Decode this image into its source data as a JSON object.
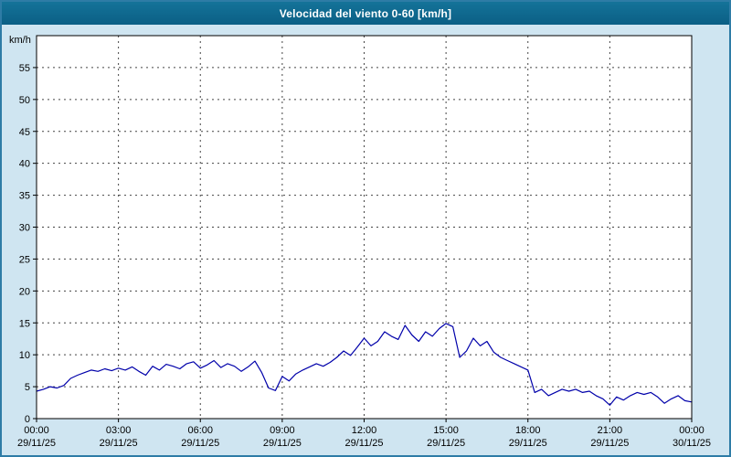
{
  "window": {
    "title": "Velocidad del viento 0-60 [km/h]"
  },
  "chart_data": {
    "type": "line",
    "title": "Velocidad del viento 0-60 [km/h]",
    "ylabel": "km/h",
    "unit_label": "km/h",
    "ylim": [
      0,
      60
    ],
    "ytick_step": 5,
    "xlim_hours": [
      0,
      24
    ],
    "x_start_hour": 0,
    "x_step_hours": 0.25,
    "grid": true,
    "line_color": "#0000aa",
    "xticks": [
      {
        "hour": 0,
        "time": "00:00",
        "date": "29/11/25"
      },
      {
        "hour": 3,
        "time": "03:00",
        "date": "29/11/25"
      },
      {
        "hour": 6,
        "time": "06:00",
        "date": "29/11/25"
      },
      {
        "hour": 9,
        "time": "09:00",
        "date": "29/11/25"
      },
      {
        "hour": 12,
        "time": "12:00",
        "date": "29/11/25"
      },
      {
        "hour": 15,
        "time": "15:00",
        "date": "29/11/25"
      },
      {
        "hour": 18,
        "time": "18:00",
        "date": "29/11/25"
      },
      {
        "hour": 21,
        "time": "21:00",
        "date": "29/11/25"
      },
      {
        "hour": 24,
        "time": "00:00",
        "date": "30/11/25"
      }
    ],
    "values": [
      4.3,
      4.6,
      5.0,
      4.8,
      5.2,
      6.3,
      6.8,
      7.2,
      7.6,
      7.4,
      7.8,
      7.5,
      7.9,
      7.6,
      8.1,
      7.4,
      6.8,
      8.2,
      7.6,
      8.5,
      8.2,
      7.8,
      8.6,
      8.9,
      7.9,
      8.4,
      9.1,
      8.0,
      8.6,
      8.2,
      7.4,
      8.1,
      9.0,
      7.2,
      4.8,
      4.4,
      6.6,
      5.9,
      7.0,
      7.6,
      8.1,
      8.6,
      8.2,
      8.8,
      9.6,
      10.6,
      9.9,
      11.2,
      12.6,
      11.4,
      12.1,
      13.6,
      12.9,
      12.4,
      14.6,
      13.1,
      12.1,
      13.6,
      12.9,
      14.1,
      14.9,
      14.4,
      9.6,
      10.6,
      12.6,
      11.4,
      12.1,
      10.4,
      9.6,
      9.1,
      8.6,
      8.1,
      7.6,
      4.1,
      4.6,
      3.6,
      4.1,
      4.6,
      4.3,
      4.6,
      4.1,
      4.3,
      3.6,
      3.1,
      2.1,
      3.4,
      2.9,
      3.6,
      4.1,
      3.8,
      4.1,
      3.4,
      2.4,
      3.1,
      3.6,
      2.8,
      2.6
    ]
  }
}
